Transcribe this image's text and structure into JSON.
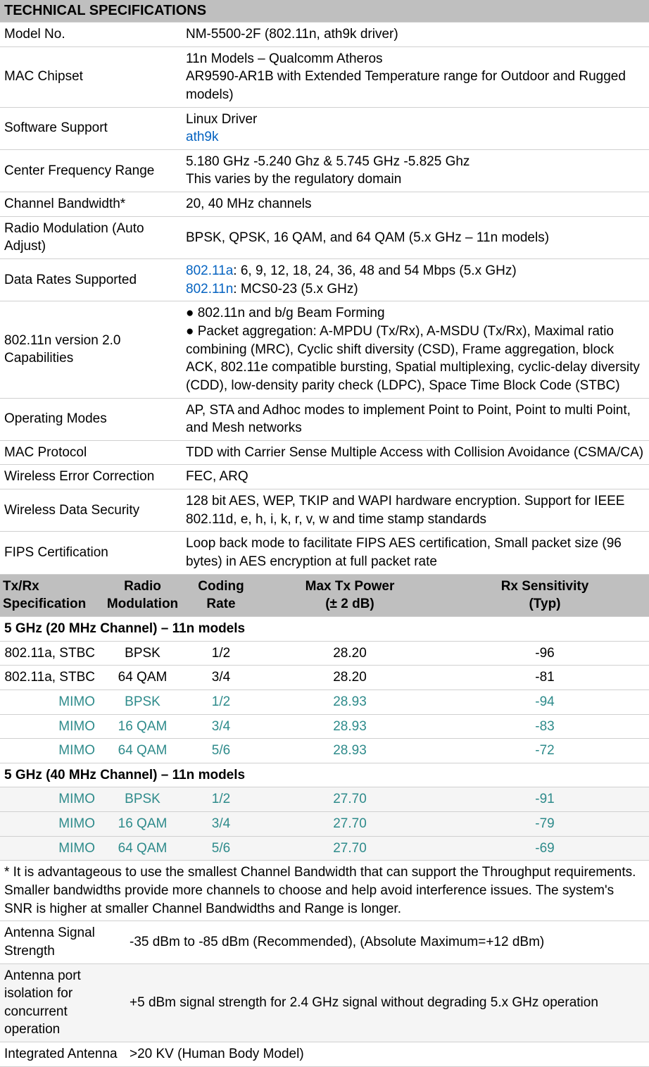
{
  "title": "TECHNICAL SPECIFICATIONS",
  "specs": [
    {
      "label": "Model No.",
      "value": "NM-5500-2F (802.11n, ath9k driver)"
    },
    {
      "label": "MAC Chipset",
      "value": "11n Models – Qualcomm Atheros\nAR9590-AR1B with Extended Temperature range for Outdoor and Rugged models)"
    },
    {
      "label": "Software Support",
      "value_pre": "Linux Driver",
      "link": "ath9k"
    },
    {
      "label": "Center Frequency Range",
      "value": "5.180 GHz -5.240 Ghz & 5.745 GHz -5.825 Ghz\nThis varies by the regulatory domain"
    },
    {
      "label": "Channel Bandwidth*",
      "value": "20, 40 MHz channels"
    },
    {
      "label": "Radio Modulation (Auto Adjust)",
      "value": "BPSK, QPSK, 16 QAM, and 64 QAM (5.x GHz – 11n models)"
    },
    {
      "label": "Data Rates Supported",
      "link1": "802.11a",
      "post1": ": 6, 9, 12, 18, 24, 36, 48 and 54 Mbps (5.x GHz)",
      "link2": "802.11n",
      "post2": ": MCS0-23 (5.x GHz)"
    },
    {
      "label": "802.11n version 2.0 Capabilities",
      "value": "● 802.11n and b/g Beam Forming\n● Packet aggregation: A-MPDU (Tx/Rx), A-MSDU (Tx/Rx), Maximal ratio combining (MRC), Cyclic shift diversity (CSD), Frame aggregation, block ACK, 802.11e compatible bursting, Spatial multiplexing, cyclic-delay diversity (CDD), low-density parity check (LDPC), Space Time Block Code (STBC)"
    },
    {
      "label": "Operating Modes",
      "value": "AP, STA and Adhoc modes to implement Point to Point, Point to multi Point, and Mesh networks"
    },
    {
      "label": "MAC Protocol",
      "value": "TDD with Carrier Sense Multiple Access with Collision Avoidance (CSMA/CA)"
    },
    {
      "label": "Wireless Error Correction",
      "value": "FEC, ARQ"
    },
    {
      "label": "Wireless Data Security",
      "value": "128 bit AES, WEP, TKIP and WAPI hardware encryption. Support for IEEE 802.11d, e, h, i, k, r, v, w and time stamp standards"
    },
    {
      "label": "FIPS Certification",
      "value": "Loop back mode to facilitate FIPS AES certification, Small packet size (96 bytes) in AES encryption at full packet rate"
    }
  ],
  "tx_header": {
    "c0a": "Tx/Rx",
    "c0b": "Specification",
    "c1a": "Radio",
    "c1b": "Modulation",
    "c2a": "Coding",
    "c2b": "Rate",
    "c3a": "Max Tx Power",
    "c3b": "(± 2 dB)",
    "c4a": "Rx Sensitivity",
    "c4b": "(Typ)"
  },
  "group1": "5 GHz (20 MHz Channel) – 11n models",
  "rows1": [
    {
      "c0": "802.11a, STBC",
      "c1": "BPSK",
      "c2": "1/2",
      "c3": "28.20",
      "c4": "-96",
      "teal": false,
      "alt": false
    },
    {
      "c0": "802.11a, STBC",
      "c1": "64 QAM",
      "c2": "3/4",
      "c3": "28.20",
      "c4": "-81",
      "teal": false,
      "alt": false
    },
    {
      "c0": "MIMO",
      "c1": "BPSK",
      "c2": "1/2",
      "c3": "28.93",
      "c4": "-94",
      "teal": true,
      "alt": false
    },
    {
      "c0": "MIMO",
      "c1": "16 QAM",
      "c2": "3/4",
      "c3": "28.93",
      "c4": "-83",
      "teal": true,
      "alt": false
    },
    {
      "c0": "MIMO",
      "c1": "64 QAM",
      "c2": "5/6",
      "c3": "28.93",
      "c4": "-72",
      "teal": true,
      "alt": false
    }
  ],
  "group2": "5 GHz (40 MHz Channel) – 11n models",
  "rows2": [
    {
      "c0": "MIMO",
      "c1": "BPSK",
      "c2": "1/2",
      "c3": "27.70",
      "c4": "-91",
      "teal": true,
      "alt": true
    },
    {
      "c0": "MIMO",
      "c1": "16 QAM",
      "c2": "3/4",
      "c3": "27.70",
      "c4": "-79",
      "teal": true,
      "alt": true
    },
    {
      "c0": "MIMO",
      "c1": "64 QAM",
      "c2": "5/6",
      "c3": "27.70",
      "c4": "-69",
      "teal": true,
      "alt": true
    }
  ],
  "footnote": "* It is advantageous to use the smallest Channel Bandwidth that can support the Throughput requirements. Smaller bandwidths provide more channels to choose and help avoid interference issues. The system's SNR is higher at smaller Channel Bandwidths and Range is longer.",
  "bottom": [
    {
      "label": "Antenna Signal Strength",
      "value": "-35 dBm to -85 dBm (Recommended), (Absolute Maximum=+12 dBm)",
      "alt": false
    },
    {
      "label": "Antenna port isolation for concurrent operation",
      "value": "+5 dBm signal strength for 2.4 GHz signal without degrading 5.x GHz operation",
      "alt": true
    },
    {
      "label": "Integrated Antenna",
      "value": ">20 KV (Human Body Model)",
      "alt": false
    }
  ],
  "col_widths": {
    "tx0": 145,
    "tx1": 115,
    "tx2": 108,
    "tx3": 258,
    "tx4": 296
  }
}
